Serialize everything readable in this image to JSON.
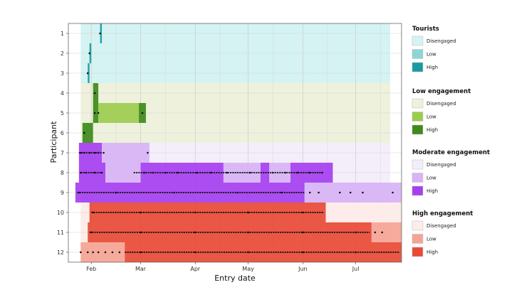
{
  "chart_data": {
    "type": "timeline",
    "xlabel": "Entry date",
    "ylabel": "Participant",
    "x_ticks": [
      "Feb",
      "Mar",
      "Apr",
      "May",
      "Jun",
      "Jul"
    ],
    "xlim": [
      "2021-01-19",
      "2021-07-27"
    ],
    "participants": [
      1,
      2,
      3,
      4,
      5,
      6,
      7,
      8,
      9,
      10,
      11,
      12
    ],
    "grid": true,
    "legend_position": "right",
    "groups": [
      {
        "name": "Tourists",
        "participants": [
          1,
          2,
          3
        ],
        "colors": {
          "Disengaged": "#d4f3f2",
          "Low": "#8ed4d7",
          "High": "#1a9aa0"
        },
        "labels": [
          "Disengaged",
          "Low",
          "High"
        ]
      },
      {
        "name": "Low engagement",
        "participants": [
          4,
          5,
          6
        ],
        "colors": {
          "Disengaged": "#eef1dc",
          "Low": "#9ccc4e",
          "High": "#3e8a1a"
        },
        "labels": [
          "Disengaged",
          "Low",
          "High"
        ]
      },
      {
        "name": "Moderate engagement",
        "participants": [
          7,
          8,
          9
        ],
        "colors": {
          "Disengaged": "#f3eefa",
          "Low": "#d8b3f5",
          "High": "#a53ff0"
        },
        "labels": [
          "Disengaged",
          "Low",
          "High"
        ]
      },
      {
        "name": "High engagement",
        "participants": [
          10,
          11,
          12
        ],
        "colors": {
          "Disengaged": "#fdece8",
          "Low": "#f5a494",
          "High": "#e84a35"
        },
        "labels": [
          "Disengaged",
          "Low",
          "High"
        ]
      }
    ],
    "segments": [
      {
        "participant": 1,
        "level": "High",
        "start": "2021-02-06",
        "end": "2021-02-07"
      },
      {
        "participant": 2,
        "level": "High",
        "start": "2021-01-31",
        "end": "2021-02-01"
      },
      {
        "participant": 3,
        "level": "High",
        "start": "2021-01-30",
        "end": "2021-01-31"
      },
      {
        "participant": 4,
        "level": "High",
        "start": "2021-02-02",
        "end": "2021-02-05"
      },
      {
        "participant": 5,
        "level": "High",
        "start": "2021-02-02",
        "end": "2021-02-05"
      },
      {
        "participant": 5,
        "level": "Low",
        "start": "2021-02-05",
        "end": "2021-02-28"
      },
      {
        "participant": 5,
        "level": "High",
        "start": "2021-02-28",
        "end": "2021-03-04"
      },
      {
        "participant": 6,
        "level": "High",
        "start": "2021-01-27",
        "end": "2021-02-02"
      },
      {
        "participant": 7,
        "level": "High",
        "start": "2021-01-25",
        "end": "2021-02-07"
      },
      {
        "participant": 7,
        "level": "Low",
        "start": "2021-02-07",
        "end": "2021-03-06"
      },
      {
        "participant": 8,
        "level": "High",
        "start": "2021-01-25",
        "end": "2021-02-09"
      },
      {
        "participant": 8,
        "level": "Low",
        "start": "2021-02-09",
        "end": "2021-03-01"
      },
      {
        "participant": 8,
        "level": "High",
        "start": "2021-03-01",
        "end": "2021-04-17"
      },
      {
        "participant": 8,
        "level": "Low",
        "start": "2021-04-17",
        "end": "2021-05-08"
      },
      {
        "participant": 8,
        "level": "High",
        "start": "2021-05-08",
        "end": "2021-05-13"
      },
      {
        "participant": 8,
        "level": "Low",
        "start": "2021-05-13",
        "end": "2021-05-25"
      },
      {
        "participant": 8,
        "level": "High",
        "start": "2021-05-25",
        "end": "2021-06-18"
      },
      {
        "participant": 9,
        "level": "High",
        "start": "2021-01-23",
        "end": "2021-06-02"
      },
      {
        "participant": 9,
        "level": "Low",
        "start": "2021-06-02",
        "end": "2021-07-27"
      },
      {
        "participant": 10,
        "level": "High",
        "start": "2021-01-31",
        "end": "2021-06-14"
      },
      {
        "participant": 10,
        "level": "Disengaged",
        "start": "2021-06-14",
        "end": "2021-07-27"
      },
      {
        "participant": 11,
        "level": "High",
        "start": "2021-01-30",
        "end": "2021-07-10"
      },
      {
        "participant": 11,
        "level": "Low",
        "start": "2021-07-10",
        "end": "2021-07-27"
      },
      {
        "participant": 12,
        "level": "Low",
        "start": "2021-01-26",
        "end": "2021-02-20"
      },
      {
        "participant": 12,
        "level": "High",
        "start": "2021-02-20",
        "end": "2021-07-27"
      }
    ],
    "entry_points": [
      {
        "participant": 1,
        "dates": [
          "2021-02-06"
        ]
      },
      {
        "participant": 2,
        "dates": [
          "2021-01-31"
        ]
      },
      {
        "participant": 3,
        "dates": [
          "2021-01-30"
        ]
      },
      {
        "participant": 4,
        "dates": [
          "2021-02-03"
        ]
      },
      {
        "participant": 5,
        "dates": [
          "2021-02-03",
          "2021-02-05",
          "2021-03-02"
        ]
      },
      {
        "participant": 6,
        "dates": [
          "2021-01-28"
        ]
      },
      {
        "participant": 7,
        "dates": [
          "2021-01-26",
          "2021-01-28",
          "2021-01-31",
          "2021-02-03",
          "2021-02-05",
          "2021-02-08",
          "2021-03-05"
        ]
      },
      {
        "participant": 8,
        "dates": [
          "2021-01-26",
          "2021-01-29",
          "2021-02-03",
          "2021-02-07",
          "2021-03-03",
          "2021-03-08",
          "2021-03-15",
          "2021-03-22",
          "2021-04-02",
          "2021-04-10",
          "2021-04-19",
          "2021-05-02",
          "2021-05-15",
          "2021-05-22",
          "2021-05-29",
          "2021-06-05",
          "2021-06-12"
        ]
      },
      {
        "participant": 9,
        "dates": [
          "2021-01-25",
          "2021-02-15",
          "2021-03-20",
          "2021-04-25",
          "2021-05-20",
          "2021-06-05",
          "2021-06-10",
          "2021-06-22",
          "2021-06-28",
          "2021-07-05",
          "2021-07-22"
        ]
      },
      {
        "participant": 10,
        "dates": [
          "2021-02-02",
          "2021-03-01",
          "2021-04-01",
          "2021-05-01",
          "2021-06-01"
        ]
      },
      {
        "participant": 11,
        "dates": [
          "2021-02-01",
          "2021-03-01",
          "2021-04-01",
          "2021-05-01",
          "2021-06-01",
          "2021-07-01",
          "2021-07-12",
          "2021-07-16"
        ]
      },
      {
        "participant": 12,
        "dates": [
          "2021-01-26",
          "2021-01-30",
          "2021-02-02",
          "2021-02-05",
          "2021-02-09",
          "2021-02-13",
          "2021-02-17",
          "2021-03-01",
          "2021-04-01",
          "2021-05-01",
          "2021-06-01",
          "2021-07-01"
        ]
      }
    ],
    "dense_lines": [
      {
        "participant": 7,
        "start": "2021-01-25",
        "end": "2021-02-07"
      },
      {
        "participant": 8,
        "start": "2021-01-26",
        "end": "2021-02-07"
      },
      {
        "participant": 8,
        "start": "2021-02-25",
        "end": "2021-06-12"
      },
      {
        "participant": 9,
        "start": "2021-01-24",
        "end": "2021-06-02"
      },
      {
        "participant": 10,
        "start": "2021-02-01",
        "end": "2021-06-13"
      },
      {
        "participant": 11,
        "start": "2021-01-31",
        "end": "2021-07-09"
      },
      {
        "participant": 12,
        "start": "2021-02-20",
        "end": "2021-07-26"
      }
    ]
  }
}
